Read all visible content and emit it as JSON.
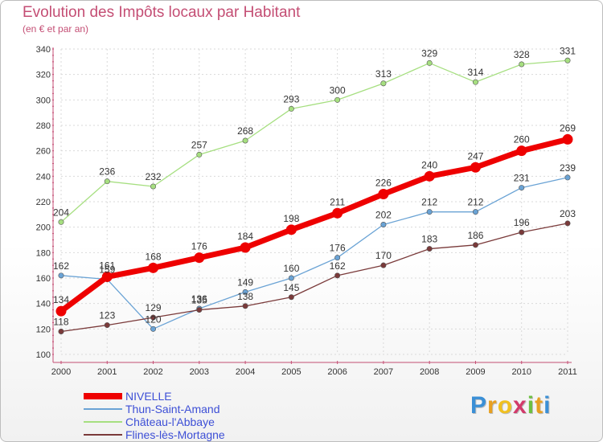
{
  "header": {
    "title": "Evolution des Impôts locaux par Habitant",
    "subtitle": "(en € et par an)"
  },
  "logo": {
    "letters": [
      "P",
      "r",
      "o",
      "x",
      "i",
      "t",
      "i"
    ],
    "colors": [
      "#3a8fd6",
      "#e8a020",
      "#f0c020",
      "#d23a6a",
      "#6cc040",
      "#e8a020",
      "#3a8fd6"
    ]
  },
  "chart_data": {
    "type": "line",
    "title": "Evolution des Impôts locaux par Habitant",
    "subtitle": "(en € et par an)",
    "xlabel": "",
    "ylabel": "",
    "x": [
      "2000",
      "2001",
      "2002",
      "2003",
      "2004",
      "2005",
      "2006",
      "2007",
      "2008",
      "2009",
      "2010",
      "2011"
    ],
    "ylim": [
      100,
      340
    ],
    "yticks": [
      100,
      120,
      140,
      160,
      180,
      200,
      220,
      240,
      260,
      280,
      300,
      320,
      340
    ],
    "grid": true,
    "legend": "bottom-left",
    "series": [
      {
        "name": "NIVELLE",
        "color": "#ee0000",
        "values": [
          134,
          161,
          168,
          176,
          184,
          198,
          211,
          226,
          240,
          247,
          260,
          269
        ]
      },
      {
        "name": "Thun-Saint-Amand",
        "color": "#6aa3d5",
        "values": [
          162,
          159,
          120,
          136,
          149,
          160,
          176,
          202,
          212,
          212,
          231,
          239
        ]
      },
      {
        "name": "Château-l'Abbaye",
        "color": "#a6df80",
        "values": [
          204,
          236,
          232,
          257,
          268,
          293,
          300,
          313,
          329,
          314,
          328,
          331
        ]
      },
      {
        "name": "Flines-lès-Mortagne",
        "color": "#7a3a3a",
        "values": [
          118,
          123,
          129,
          135,
          138,
          145,
          162,
          170,
          183,
          186,
          196,
          203
        ]
      }
    ]
  }
}
